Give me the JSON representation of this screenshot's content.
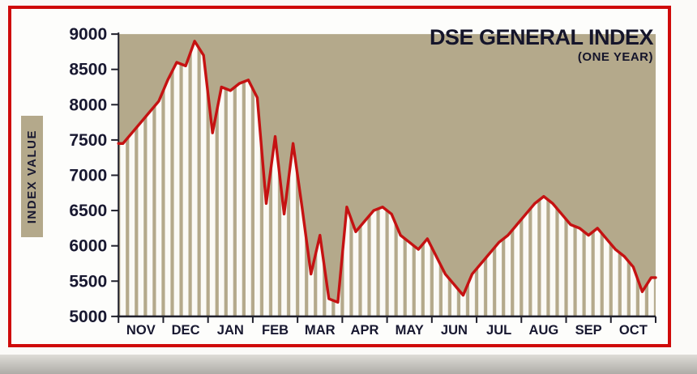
{
  "panel": {
    "border_color": "#cf0a0a"
  },
  "chart_data": {
    "type": "line",
    "title": "DSE GENERAL INDEX",
    "subtitle": "(ONE YEAR)",
    "ylabel": "INDEX VALUE",
    "xlabel": "",
    "x_tick_labels": [
      "NOV",
      "DEC",
      "JAN",
      "FEB",
      "MAR",
      "APR",
      "MAY",
      "JUN",
      "JUL",
      "AUG",
      "SEP",
      "OCT"
    ],
    "y_ticks": [
      5000,
      5500,
      6000,
      6500,
      7000,
      7500,
      8000,
      8500,
      9000
    ],
    "ylim": [
      5000,
      9000
    ],
    "grid": false,
    "legend_position": "none",
    "plot_bg": "#b4a98b",
    "stripe_color": "#fbfaf6",
    "line_color": "#c51212",
    "axis_color": "#20202c",
    "text_color": "#181830",
    "points_per_month": 5,
    "series": [
      {
        "name": "DSE General Index",
        "values": [
          7450,
          7600,
          7750,
          7900,
          8050,
          8350,
          8600,
          8550,
          8900,
          8700,
          7600,
          8250,
          8200,
          8300,
          8350,
          8100,
          6600,
          7550,
          6450,
          7450,
          6550,
          5600,
          6150,
          5250,
          5200,
          6550,
          6200,
          6350,
          6500,
          6550,
          6450,
          6150,
          6050,
          5950,
          6100,
          5850,
          5600,
          5450,
          5300,
          5600,
          5750,
          5900,
          6050,
          6150,
          6300,
          6450,
          6600,
          6700,
          6600,
          6450,
          6300,
          6250,
          6150,
          6250,
          6100,
          5950,
          5850,
          5700,
          5350,
          5550
        ]
      }
    ]
  }
}
